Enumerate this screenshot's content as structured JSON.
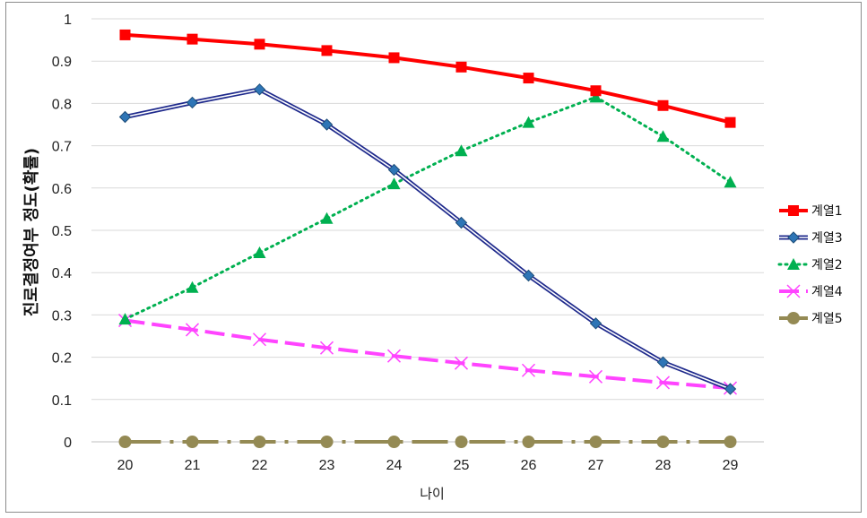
{
  "chart_data": {
    "type": "line",
    "title": "",
    "xlabel": "나이",
    "ylabel": "진로결정여부 정도(확률)",
    "categories": [
      "20",
      "21",
      "22",
      "23",
      "24",
      "25",
      "26",
      "27",
      "28",
      "29"
    ],
    "ylim": [
      0,
      1
    ],
    "yticks": [
      "0",
      "0.1",
      "0.2",
      "0.3",
      "0.4",
      "0.5",
      "0.6",
      "0.7",
      "0.8",
      "0.9",
      "1"
    ],
    "grid": true,
    "legend_position": "right",
    "series": [
      {
        "name": "계열1",
        "color": "#ff0000",
        "marker": "square",
        "dash": "solid",
        "values": [
          0.962,
          0.952,
          0.94,
          0.925,
          0.908,
          0.886,
          0.86,
          0.83,
          0.795,
          0.755
        ]
      },
      {
        "name": "계열3",
        "color": "#1f2a8c",
        "marker": "diamond",
        "dash": "double",
        "values": [
          0.768,
          0.802,
          0.833,
          0.75,
          0.643,
          0.518,
          0.393,
          0.28,
          0.188,
          0.125
        ]
      },
      {
        "name": "계열2",
        "color": "#00b050",
        "marker": "triangle",
        "dash": "dotted",
        "values": [
          0.29,
          0.365,
          0.447,
          0.528,
          0.61,
          0.688,
          0.755,
          0.815,
          0.722,
          0.614
        ]
      },
      {
        "name": "계열4",
        "color": "#ff44ff",
        "marker": "x",
        "dash": "longdash",
        "values": [
          0.287,
          0.265,
          0.242,
          0.222,
          0.203,
          0.186,
          0.169,
          0.154,
          0.14,
          0.127
        ]
      },
      {
        "name": "계열5",
        "color": "#948a54",
        "marker": "circle",
        "dash": "dashdot",
        "values": [
          0,
          0,
          0,
          0,
          0,
          0,
          0,
          0,
          0,
          0
        ]
      }
    ]
  }
}
